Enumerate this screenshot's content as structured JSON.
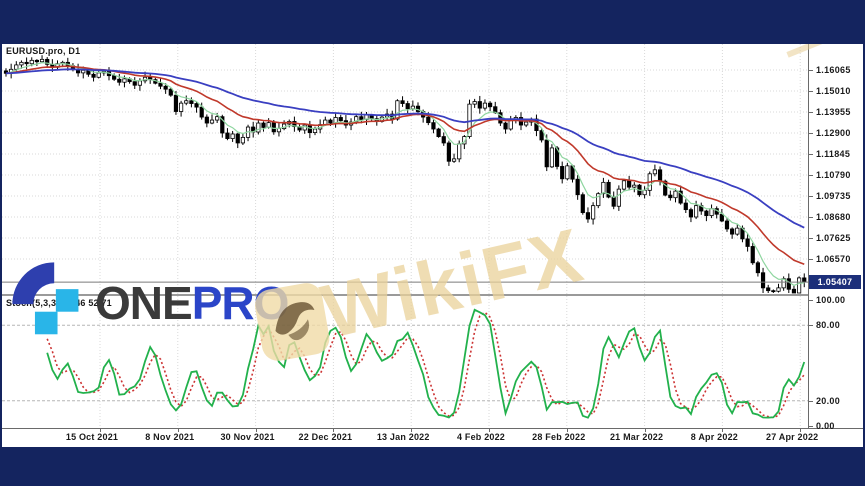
{
  "window": {
    "symbol_label": "EURUSD.pro, D1",
    "indicator_label": "Stoch(5,3,3) 52.46 52.71",
    "current_price": "1.05407"
  },
  "price_axis": {
    "labels": [
      "1.16065",
      "1.15010",
      "1.13955",
      "1.12900",
      "1.11845",
      "1.10790",
      "1.09735",
      "1.08680",
      "1.07625",
      "1.06570"
    ]
  },
  "stoch_axis": {
    "labels": [
      "100.00",
      "80.00",
      "20.00",
      "0.00"
    ]
  },
  "date_axis": {
    "labels": [
      "15 Oct 2021",
      "8 Nov 2021",
      "30 Nov 2021",
      "22 Dec 2021",
      "13 Jan 2022",
      "4 Feb 2022",
      "28 Feb 2022",
      "21 Mar 2022",
      "8 Apr 2022",
      "27 Apr 2022"
    ]
  },
  "logo": {
    "text_one": "ONE",
    "text_pro": "PRO"
  },
  "watermark": {
    "text": "WikiFX"
  },
  "colors": {
    "frame_navy": "#14245f",
    "ma_fast_green": "#8fd6a0",
    "ma_mid_red": "#c0392b",
    "ma_slow_blue": "#3a3fc1",
    "stoch_k_green": "#22b14c",
    "stoch_d_red": "#cc3333",
    "bid_box_bg": "#1c2f7a",
    "logo_dark_blue": "#2e3fae",
    "logo_light_blue": "#29b5e8"
  },
  "chart_data": {
    "type": "candlestick",
    "symbol": "EURUSD.pro",
    "timeframe": "D1",
    "title": "EURUSD.pro, D1",
    "price_axis": {
      "top_gridline": 1.16065,
      "grid_step": 0.01055,
      "labels_count": 10
    },
    "current_price": 1.05407,
    "date_ticks": [
      "15 Oct 2021",
      "8 Nov 2021",
      "30 Nov 2021",
      "22 Dec 2021",
      "13 Jan 2022",
      "4 Feb 2022",
      "28 Feb 2022",
      "21 Mar 2022",
      "8 Apr 2022",
      "27 Apr 2022"
    ],
    "closes": [
      1.159,
      1.161,
      1.1632,
      1.1645,
      1.1638,
      1.1655,
      1.1648,
      1.166,
      1.1635,
      1.162,
      1.1638,
      1.1645,
      1.1628,
      1.161,
      1.1592,
      1.1605,
      1.1585,
      1.157,
      1.1592,
      1.16,
      1.1578,
      1.156,
      1.1545,
      1.1562,
      1.1548,
      1.153,
      1.1552,
      1.157,
      1.1558,
      1.154,
      1.1525,
      1.151,
      1.148,
      1.1398,
      1.144,
      1.1452,
      1.1438,
      1.142,
      1.137,
      1.134,
      1.1355,
      1.1372,
      1.129,
      1.1262,
      1.1285,
      1.124,
      1.1268,
      1.132,
      1.1295,
      1.134,
      1.1318,
      1.1342,
      1.1296,
      1.1312,
      1.1335,
      1.1348,
      1.1322,
      1.1305,
      1.133,
      1.1292,
      1.131,
      1.1332,
      1.1355,
      1.134,
      1.1368,
      1.1352,
      1.133,
      1.1345,
      1.1372,
      1.1358,
      1.138,
      1.1362,
      1.1348,
      1.137,
      1.1385,
      1.136,
      1.1452,
      1.1438,
      1.1412,
      1.1425,
      1.1398,
      1.137,
      1.1342,
      1.131,
      1.1272,
      1.124,
      1.1148,
      1.116,
      1.1235,
      1.1272,
      1.1435,
      1.1448,
      1.1415,
      1.144,
      1.1422,
      1.1392,
      1.134,
      1.131,
      1.1355,
      1.1368,
      1.133,
      1.1345,
      1.136,
      1.1302,
      1.1255,
      1.112,
      1.1215,
      1.1122,
      1.106,
      1.1125,
      1.1058,
      1.098,
      1.089,
      1.0858,
      1.0925,
      1.0985,
      1.1042,
      1.0968,
      1.0922,
      1.1008,
      1.105,
      1.1018,
      1.1028,
      1.098,
      1.1002,
      1.1085,
      1.1105,
      1.1048,
      1.0978,
      1.0965,
      1.0998,
      1.0938,
      1.0905,
      1.0868,
      1.0925,
      1.0898,
      1.0875,
      1.091,
      1.0882,
      1.0848,
      1.0808,
      1.0782,
      1.0812,
      1.0758,
      1.072,
      1.0638,
      1.0588,
      1.0512,
      1.0498,
      1.0495,
      1.0512,
      1.0558,
      1.0505,
      1.0482,
      1.0562,
      1.0541
    ],
    "indicators": {
      "moving_averages": [
        {
          "name": "fast",
          "period": 6,
          "color": "#8fd6a0"
        },
        {
          "name": "mid",
          "period": 18,
          "color": "#c0392b"
        },
        {
          "name": "slow",
          "period": 45,
          "color": "#3a3fc1"
        }
      ],
      "stochastic": {
        "label": "Stoch(5,3,3)",
        "k_period": 5,
        "d_period": 3,
        "slowing": 3,
        "last_k": 52.46,
        "last_d": 52.71,
        "levels": [
          20,
          80
        ],
        "scale_labels": [
          100,
          80,
          20,
          0
        ]
      }
    }
  }
}
